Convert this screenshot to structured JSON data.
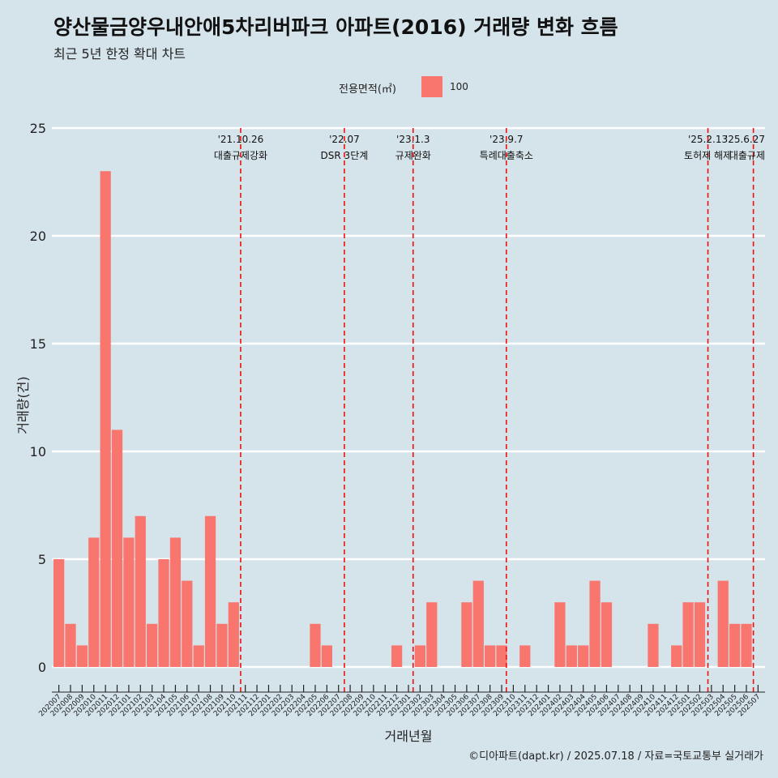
{
  "header": {
    "title": "양산물금양우내안애5차리버파크 아파트(2016) 거래량 변화 흐름",
    "subtitle": "최근 5년 한정 확대 차트"
  },
  "legend": {
    "title": "전용면적(㎡)",
    "items": [
      {
        "label": "100",
        "color": "#f8766d"
      }
    ]
  },
  "caption": "©디아파트(dapt.kr) / 2025.07.18 / 자료=국토교통부 실거래가",
  "chart_data": {
    "type": "bar",
    "xlabel": "거래년월",
    "ylabel": "거래량(건)",
    "ylim": [
      0,
      25
    ],
    "yticks": [
      0,
      5,
      10,
      15,
      20,
      25
    ],
    "grid": "horizontal",
    "legend_position": "top",
    "bar_color": "#f8766d",
    "categories": [
      "202007",
      "202008",
      "202009",
      "202010",
      "202011",
      "202012",
      "202101",
      "202102",
      "202103",
      "202104",
      "202105",
      "202106",
      "202107",
      "202108",
      "202109",
      "202110",
      "202111",
      "202112",
      "202201",
      "202202",
      "202203",
      "202204",
      "202205",
      "202206",
      "202207",
      "202208",
      "202209",
      "202210",
      "202211",
      "202212",
      "202301",
      "202302",
      "202303",
      "202304",
      "202305",
      "202306",
      "202307",
      "202308",
      "202309",
      "202310",
      "202311",
      "202312",
      "202401",
      "202402",
      "202403",
      "202404",
      "202405",
      "202406",
      "202407",
      "202408",
      "202409",
      "202410",
      "202411",
      "202412",
      "202501",
      "202502",
      "202503",
      "202504",
      "202505",
      "202506",
      "202507"
    ],
    "series": [
      {
        "name": "100",
        "values": [
          5,
          2,
          1,
          6,
          23,
          11,
          6,
          7,
          2,
          5,
          6,
          4,
          1,
          7,
          2,
          3,
          0,
          0,
          0,
          0,
          0,
          0,
          2,
          1,
          0,
          0,
          0,
          0,
          0,
          1,
          0,
          1,
          3,
          0,
          0,
          3,
          4,
          1,
          1,
          0,
          1,
          0,
          0,
          3,
          1,
          1,
          4,
          3,
          0,
          0,
          0,
          2,
          0,
          1,
          3,
          3,
          0,
          4,
          2,
          2,
          0
        ]
      }
    ],
    "annotations": [
      {
        "date": "'21.10.26",
        "label": "대출규제강화",
        "position": 15.6
      },
      {
        "date": "'22.07",
        "label": "DSR 3단계",
        "position": 24.5
      },
      {
        "date": "'23.1.3",
        "label": "규제완화",
        "position": 30.4
      },
      {
        "date": "'23.9.7",
        "label": "특례대출축소",
        "position": 38.4
      },
      {
        "date": "'25.2.13",
        "label": "토허제 해제",
        "position": 55.7
      },
      {
        "date": "'25.6.27",
        "label": "대출규제",
        "position": 59.6
      }
    ]
  }
}
